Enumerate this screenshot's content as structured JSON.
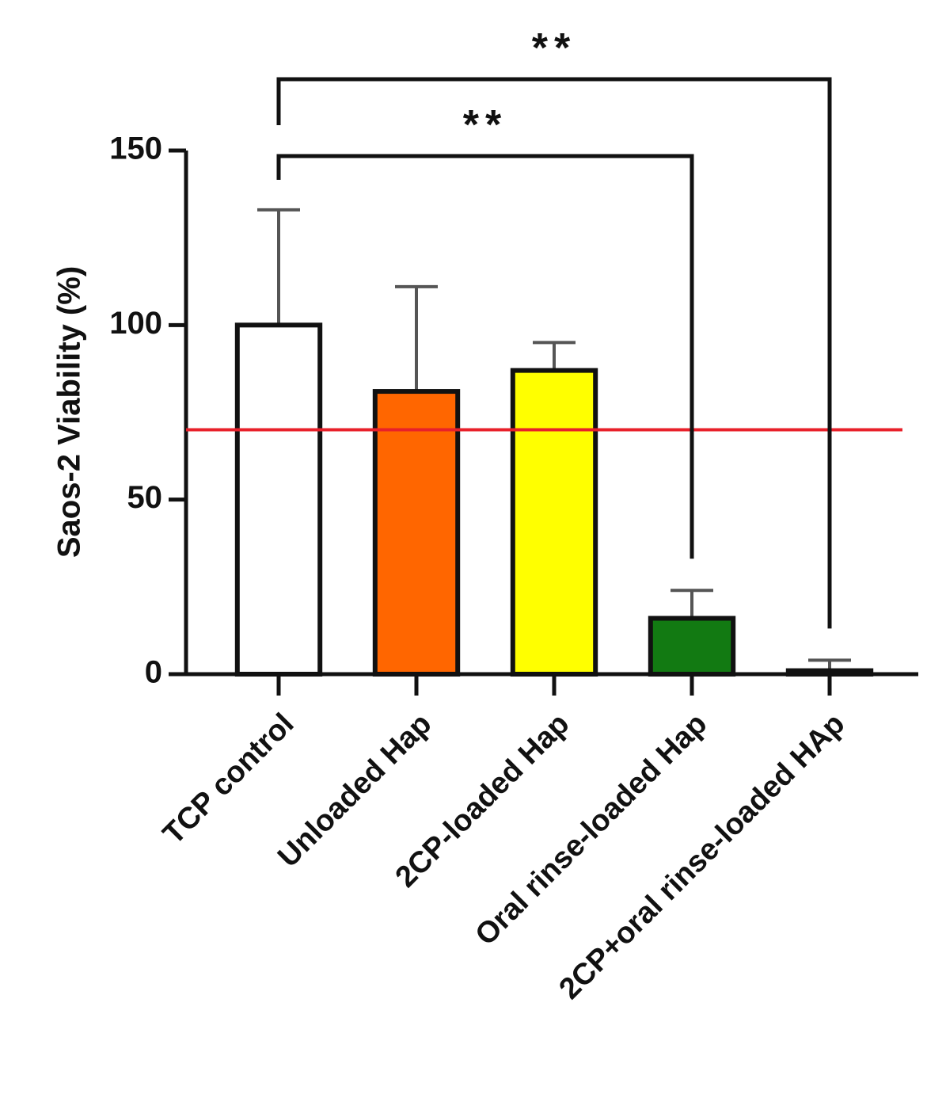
{
  "chart_data": {
    "type": "bar",
    "ylabel": "Saos-2 Viability (%)",
    "categories": [
      "TCP control",
      "Unloaded Hap",
      "2CP-loaded Hap",
      "Oral rinse-loaded Hap",
      "2CP+oral rinse-loaded HAp"
    ],
    "values": [
      100,
      81,
      87,
      16,
      1
    ],
    "errors": [
      33,
      30,
      8,
      8,
      3
    ],
    "colors": [
      "#ffffff",
      "#ff6600",
      "#ffff00",
      "#127a12",
      "#ffffff"
    ],
    "ylim": [
      0,
      150
    ],
    "yticks": [
      0,
      50,
      100,
      150
    ],
    "reference_line": {
      "value": 70,
      "color": "#e8202a"
    },
    "significance": [
      {
        "from": 0,
        "to": 3,
        "label": "**"
      },
      {
        "from": 0,
        "to": 4,
        "label": "**"
      }
    ]
  }
}
